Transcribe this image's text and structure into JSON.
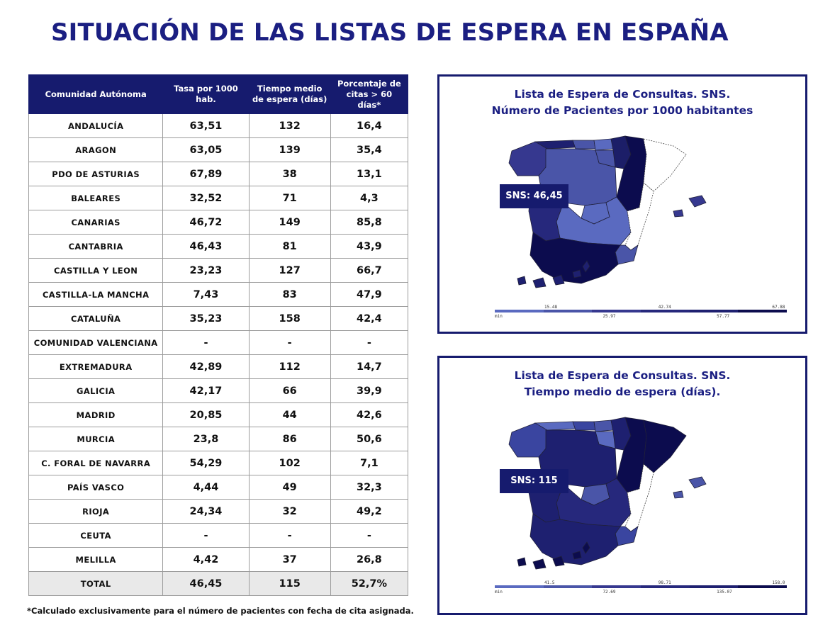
{
  "title": "SITUACIÓN DE LAS LISTAS DE ESPERA EN ESPAÑA",
  "table": {
    "headers": [
      "Comunidad Autónoma",
      "Tasa por 1000 hab.",
      "Tiempo medio de espera (días)",
      "Porcentaje de citas > 60 días*"
    ],
    "rows": [
      {
        "region": "ANDALUCÍA",
        "tasa": "63,51",
        "tiempo": "132",
        "pct": "16,4"
      },
      {
        "region": "ARAGON",
        "tasa": "63,05",
        "tiempo": "139",
        "pct": "35,4"
      },
      {
        "region": "PDO DE ASTURIAS",
        "tasa": "67,89",
        "tiempo": "38",
        "pct": "13,1"
      },
      {
        "region": "BALEARES",
        "tasa": "32,52",
        "tiempo": "71",
        "pct": "4,3"
      },
      {
        "region": "CANARIAS",
        "tasa": "46,72",
        "tiempo": "149",
        "pct": "85,8"
      },
      {
        "region": "CANTABRIA",
        "tasa": "46,43",
        "tiempo": "81",
        "pct": "43,9"
      },
      {
        "region": "CASTILLA Y LEON",
        "tasa": "23,23",
        "tiempo": "127",
        "pct": "66,7"
      },
      {
        "region": "CASTILLA-LA MANCHA",
        "tasa": "7,43",
        "tiempo": "83",
        "pct": "47,9"
      },
      {
        "region": "CATALUÑA",
        "tasa": "35,23",
        "tiempo": "158",
        "pct": "42,4"
      },
      {
        "region": "COMUNIDAD VALENCIANA",
        "tasa": "-",
        "tiempo": "-",
        "pct": "-"
      },
      {
        "region": "EXTREMADURA",
        "tasa": "42,89",
        "tiempo": "112",
        "pct": "14,7"
      },
      {
        "region": "GALICIA",
        "tasa": "42,17",
        "tiempo": "66",
        "pct": "39,9"
      },
      {
        "region": "MADRID",
        "tasa": "20,85",
        "tiempo": "44",
        "pct": "42,6"
      },
      {
        "region": "MURCIA",
        "tasa": "23,8",
        "tiempo": "86",
        "pct": "50,6"
      },
      {
        "region": "C. FORAL DE NAVARRA",
        "tasa": "54,29",
        "tiempo": "102",
        "pct": "7,1"
      },
      {
        "region": "PAÍS VASCO",
        "tasa": "4,44",
        "tiempo": "49",
        "pct": "32,3"
      },
      {
        "region": "RIOJA",
        "tasa": "24,34",
        "tiempo": "32",
        "pct": "49,2"
      },
      {
        "region": "CEUTA",
        "tasa": "-",
        "tiempo": "-",
        "pct": "-"
      },
      {
        "region": "MELILLA",
        "tasa": "4,42",
        "tiempo": "37",
        "pct": "26,8"
      }
    ],
    "total": {
      "region": "TOTAL",
      "tasa": "46,45",
      "tiempo": "115",
      "pct": "52,7%"
    }
  },
  "footnote": "*Calculado exclusivamente para el número de pacientes con fecha de cita asignada.",
  "maps": [
    {
      "title_line1": "Lista de Espera de Consultas. SNS.",
      "title_line2": "Número de Pacientes por 1000 habitantes",
      "badge": "SNS: 46,45",
      "legend_upper": [
        "15.48",
        "42.74",
        "67.88"
      ],
      "legend_lower": [
        "min",
        "25.97",
        "57.77"
      ],
      "region_fills": {
        "galicia": "#36388f",
        "asturias": "#1e2070",
        "cantabria": "#4a55a8",
        "paisvasco": "#5a6ac0",
        "navarra": "#1c1e68",
        "rioja": "#4a55a8",
        "aragon": "#0c0c4e",
        "cataluna": "#ffffff",
        "cyl": "#4a55a8",
        "madrid": "#5a6ac0",
        "clm": "#5a6ac0",
        "extremadura": "#26287c",
        "andalucia": "#0c0c4e",
        "valencia": "#ffffff",
        "murcia": "#4a55a8",
        "baleares": "#36388f",
        "canarias": "#1e2070"
      }
    },
    {
      "title_line1": "Lista de Espera de Consultas. SNS.",
      "title_line2": "Tiempo medio de espera (días).",
      "badge": "SNS: 115",
      "legend_upper": [
        "41.5",
        "98.71",
        "158.0"
      ],
      "legend_lower": [
        "min",
        "72.69",
        "135.07"
      ],
      "region_fills": {
        "galicia": "#3a45a0",
        "asturias": "#5a6ac0",
        "cantabria": "#3a45a0",
        "paisvasco": "#4a55a8",
        "navarra": "#1e2070",
        "rioja": "#5a6ac0",
        "aragon": "#0c0c4e",
        "cataluna": "#0c0c4e",
        "cyl": "#1e2070",
        "madrid": "#4a55a8",
        "clm": "#26287c",
        "extremadura": "#1e2070",
        "andalucia": "#1e2070",
        "valencia": "#ffffff",
        "murcia": "#3a45a0",
        "baleares": "#4a55a8",
        "canarias": "#0c0c4e"
      }
    }
  ],
  "legend_colors": [
    "#5a6ac0",
    "#4a55a8",
    "#36388f",
    "#26287c",
    "#1e2070",
    "#0c0c4e"
  ]
}
